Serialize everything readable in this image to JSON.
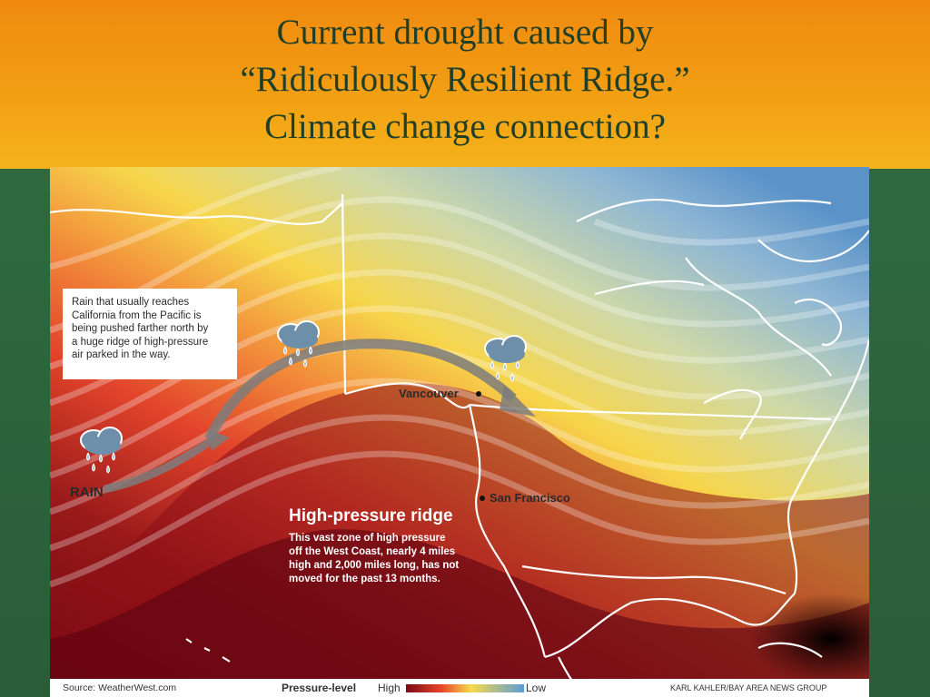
{
  "slide": {
    "title_lines": [
      "Current drought caused by",
      "“Ridiculously Resilient Ridge.”",
      "Climate change connection?"
    ]
  },
  "map": {
    "callout_text": "Rain that usually reaches\nCalifornia from the Pacific is\nbeing pushed farther north by\na huge ridge of high-pressure\nair parked in the way.",
    "rain_label": "RAIN",
    "cities": {
      "vancouver": "Vancouver",
      "san_francisco": "San Francisco"
    },
    "ridge_title": "High-pressure ridge",
    "ridge_description": "This vast zone of high pressure\noff the West Coast, nearly 4 miles\nhigh and 2,000 miles long, has not\nmoved for the past 13 months.",
    "footer": {
      "source": "Source: WeatherWest.com",
      "legend_label": "Pressure-level",
      "legend_high": "High",
      "legend_low": "Low",
      "credit": "KARL KAHLER/BAY AREA NEWS GROUP"
    },
    "colors": {
      "high": "#7a0a14",
      "mid": "#e8452a",
      "warm": "#f7d94a",
      "low": "#5b9bd5"
    },
    "icons": [
      "rain-cloud-icon",
      "rain-cloud-icon",
      "rain-cloud-icon",
      "jet-stream-arrow-icon"
    ]
  }
}
